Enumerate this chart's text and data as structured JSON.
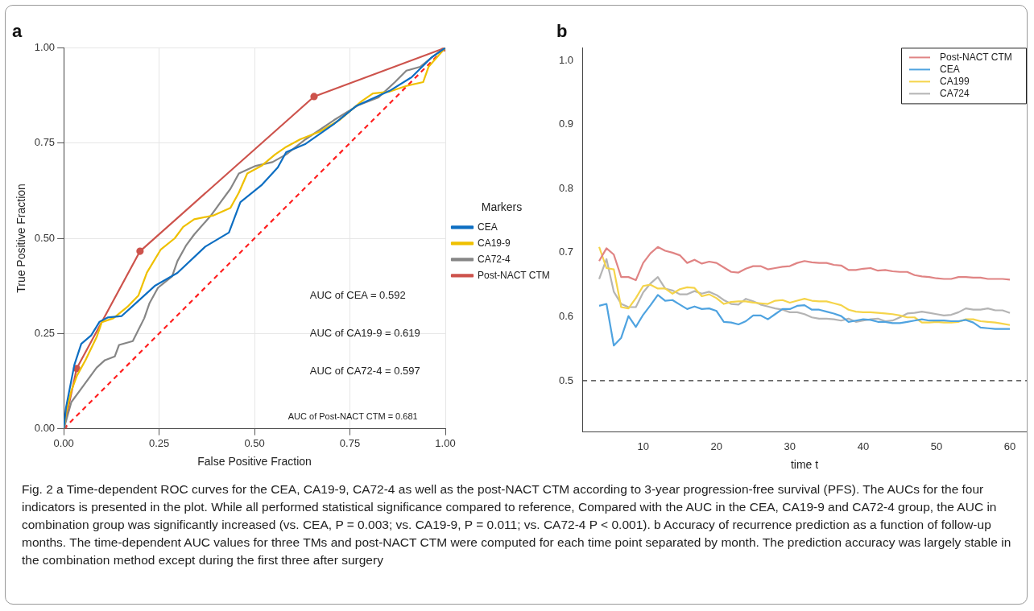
{
  "chart_data": [
    {
      "type": "line",
      "title": "a",
      "xlabel": "False Positive Fraction",
      "ylabel": "True Positive Fraction",
      "legend_title": "Markers",
      "legend": "right",
      "grid": true,
      "marker": "none",
      "xlim": [
        0,
        1
      ],
      "ylim": [
        0,
        1
      ],
      "xticks": [
        {
          "value": 0,
          "label": "0.00"
        },
        {
          "value": 0.25,
          "label": "0.25"
        },
        {
          "value": 0.5,
          "label": "0.50"
        },
        {
          "value": 0.75,
          "label": "0.75"
        },
        {
          "value": 1,
          "label": "1.00"
        }
      ],
      "yticks": [
        {
          "value": 0,
          "label": "0.00"
        },
        {
          "value": 0.25,
          "label": "0.25"
        },
        {
          "value": 0.5,
          "label": "0.50"
        },
        {
          "value": 0.75,
          "label": "0.75"
        },
        {
          "value": 1,
          "label": "1.00"
        }
      ],
      "series": [
        {
          "name": "CEA",
          "color": "#0d6ec2",
          "x": [
            0,
            0.006,
            0.028,
            0.046,
            0.072,
            0.094,
            0.115,
            0.152,
            0.196,
            0.24,
            0.298,
            0.371,
            0.433,
            0.463,
            0.518,
            0.561,
            0.583,
            0.634,
            0.708,
            0.766,
            0.854,
            0.912,
            0.963,
            1
          ],
          "values": [
            0,
            0.055,
            0.168,
            0.223,
            0.245,
            0.281,
            0.292,
            0.296,
            0.336,
            0.376,
            0.409,
            0.478,
            0.515,
            0.595,
            0.639,
            0.686,
            0.726,
            0.748,
            0.8,
            0.847,
            0.887,
            0.923,
            0.974,
            1
          ]
        },
        {
          "name": "CA19-9",
          "color": "#efc000",
          "x": [
            0,
            0.006,
            0.02,
            0.035,
            0.057,
            0.086,
            0.1,
            0.13,
            0.167,
            0.196,
            0.218,
            0.254,
            0.291,
            0.313,
            0.342,
            0.393,
            0.437,
            0.459,
            0.481,
            0.518,
            0.554,
            0.583,
            0.62,
            0.671,
            0.722,
            0.781,
            0.81,
            0.854,
            0.898,
            0.942,
            0.956,
            1
          ],
          "values": [
            0,
            0.04,
            0.1,
            0.14,
            0.18,
            0.24,
            0.28,
            0.29,
            0.32,
            0.35,
            0.41,
            0.47,
            0.5,
            0.53,
            0.55,
            0.56,
            0.58,
            0.62,
            0.67,
            0.69,
            0.72,
            0.74,
            0.76,
            0.78,
            0.81,
            0.86,
            0.88,
            0.885,
            0.9,
            0.91,
            0.95,
            1
          ]
        },
        {
          "name": "CA72-4",
          "color": "#868686",
          "x": [
            0,
            0.006,
            0.02,
            0.042,
            0.064,
            0.086,
            0.108,
            0.134,
            0.145,
            0.181,
            0.196,
            0.211,
            0.225,
            0.247,
            0.284,
            0.298,
            0.32,
            0.342,
            0.386,
            0.415,
            0.437,
            0.459,
            0.503,
            0.547,
            0.583,
            0.634,
            0.708,
            0.773,
            0.825,
            0.868,
            0.898,
            0.934,
            0.971,
            1
          ],
          "values": [
            0,
            0.02,
            0.07,
            0.1,
            0.13,
            0.16,
            0.18,
            0.19,
            0.22,
            0.23,
            0.26,
            0.29,
            0.33,
            0.37,
            0.4,
            0.44,
            0.48,
            0.51,
            0.56,
            0.6,
            0.63,
            0.67,
            0.69,
            0.7,
            0.72,
            0.76,
            0.81,
            0.85,
            0.87,
            0.91,
            0.94,
            0.95,
            0.98,
            1
          ]
        },
        {
          "name": "Post-NACT CTM",
          "color": "#cd534c",
          "marker": "circle",
          "x": [
            0,
            0.034,
            0.2,
            0.656,
            1
          ],
          "values": [
            0,
            0.158,
            0.466,
            0.872,
            1
          ]
        },
        {
          "color": "#ff2020",
          "line_style": "dashed",
          "x": [
            0,
            1
          ],
          "values": [
            0,
            1
          ]
        }
      ],
      "annotations": [
        "AUC of CEA = 0.592",
        "AUC of CA19-9 = 0.619",
        "AUC of CA72-4 = 0.597",
        "AUC of Post-NACT CTM = 0.681"
      ]
    },
    {
      "type": "line",
      "title": "b",
      "xlabel": "time t",
      "legend": "top right",
      "grid": false,
      "marker": "none",
      "xlim": [
        1.7,
        62.3
      ],
      "ylim": [
        0.42,
        1.02
      ],
      "xticks": [
        10,
        20,
        30,
        40,
        50,
        60
      ],
      "yticks": [
        0.5,
        0.6,
        0.7,
        0.8,
        0.9,
        {
          "value": 1,
          "label": "1.0"
        }
      ],
      "x": [
        4,
        5,
        6,
        7,
        8,
        9,
        10,
        11,
        12,
        13,
        14,
        15,
        16,
        17,
        18,
        19,
        20,
        21,
        22,
        23,
        24,
        25,
        26,
        27,
        28,
        29,
        30,
        31,
        32,
        33,
        34,
        35,
        36,
        37,
        38,
        39,
        40,
        41,
        42,
        43,
        44,
        45,
        46,
        47,
        48,
        49,
        50,
        51,
        52,
        53,
        54,
        55,
        56,
        57,
        58,
        59,
        60
      ],
      "series": [
        {
          "name": "Post-NACT CTM",
          "color": "#e08484",
          "values": [
            0.687,
            0.707,
            0.697,
            0.662,
            0.662,
            0.657,
            0.684,
            0.699,
            0.709,
            0.703,
            0.7,
            0.696,
            0.684,
            0.689,
            0.683,
            0.686,
            0.684,
            0.677,
            0.67,
            0.669,
            0.675,
            0.679,
            0.679,
            0.674,
            0.676,
            0.678,
            0.679,
            0.684,
            0.687,
            0.685,
            0.684,
            0.684,
            0.681,
            0.68,
            0.673,
            0.673,
            0.675,
            0.676,
            0.672,
            0.673,
            0.671,
            0.67,
            0.67,
            0.665,
            0.663,
            0.662,
            0.66,
            0.659,
            0.659,
            0.662,
            0.662,
            0.661,
            0.661,
            0.659,
            0.659,
            0.659,
            0.658
          ]
        },
        {
          "name": "CEA",
          "color": "#4fa3e0",
          "values": [
            0.617,
            0.62,
            0.555,
            0.567,
            0.601,
            0.584,
            0.603,
            0.618,
            0.634,
            0.625,
            0.626,
            0.619,
            0.612,
            0.616,
            0.612,
            0.613,
            0.609,
            0.592,
            0.591,
            0.588,
            0.593,
            0.602,
            0.602,
            0.596,
            0.604,
            0.612,
            0.612,
            0.617,
            0.618,
            0.611,
            0.611,
            0.608,
            0.605,
            0.601,
            0.592,
            0.594,
            0.596,
            0.595,
            0.592,
            0.592,
            0.59,
            0.59,
            0.592,
            0.594,
            0.596,
            0.594,
            0.594,
            0.594,
            0.593,
            0.593,
            0.595,
            0.591,
            0.583,
            0.582,
            0.581,
            0.581,
            0.581
          ]
        },
        {
          "name": "CA199",
          "color": "#f5d44a",
          "values": [
            0.709,
            0.676,
            0.674,
            0.615,
            0.613,
            0.629,
            0.648,
            0.65,
            0.644,
            0.644,
            0.636,
            0.643,
            0.646,
            0.645,
            0.632,
            0.635,
            0.629,
            0.62,
            0.623,
            0.624,
            0.624,
            0.622,
            0.621,
            0.62,
            0.625,
            0.626,
            0.622,
            0.625,
            0.628,
            0.625,
            0.624,
            0.624,
            0.621,
            0.618,
            0.611,
            0.608,
            0.607,
            0.607,
            0.606,
            0.605,
            0.604,
            0.602,
            0.599,
            0.599,
            0.591,
            0.591,
            0.592,
            0.591,
            0.591,
            0.592,
            0.596,
            0.596,
            0.593,
            0.592,
            0.591,
            0.589,
            0.587
          ]
        },
        {
          "name": "CA724",
          "color": "#b4b4b4",
          "values": [
            0.659,
            0.69,
            0.639,
            0.62,
            0.615,
            0.615,
            0.638,
            0.652,
            0.662,
            0.644,
            0.641,
            0.635,
            0.635,
            0.64,
            0.636,
            0.639,
            0.634,
            0.626,
            0.62,
            0.619,
            0.628,
            0.624,
            0.619,
            0.616,
            0.613,
            0.611,
            0.607,
            0.607,
            0.604,
            0.599,
            0.597,
            0.597,
            0.596,
            0.594,
            0.597,
            0.592,
            0.594,
            0.596,
            0.597,
            0.593,
            0.594,
            0.599,
            0.605,
            0.606,
            0.608,
            0.606,
            0.604,
            0.602,
            0.603,
            0.607,
            0.613,
            0.611,
            0.611,
            0.613,
            0.61,
            0.61,
            0.606
          ]
        }
      ],
      "ref_lines": [
        {
          "axis": "y",
          "value": 0.5,
          "color": "#333333",
          "line_style": "dashed"
        }
      ],
      "annotations": [
        "Fig. 2 a Time-dependent ROC curves for the CEA, CA19-9, CA72-4 as well as the post-NACT CTM according to 3-year progression-free survival (PFS). The AUCs for the four indicators is presented in the plot. While all performed statistical significance compared to reference, Compared with the AUC in the CEA, CA19-9 and CA72-4 group, the AUC in combination group was significantly increased (vs. CEA, P = 0.003; vs. CA19-9, P = 0.011; vs. CA72-4 P < 0.001). b Accuracy of recurrence prediction as a function of follow-up months. The time-dependent AUC values for three TMs and post-NACT CTM were computed for each time point separated by month. The prediction accuracy was largely stable in the combination method except during the first three after surgery"
      ]
    }
  ]
}
